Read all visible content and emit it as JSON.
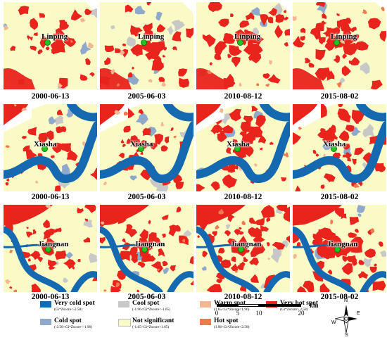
{
  "colors": {
    "very_cold": "#1569b0",
    "cold": "#8fa9cd",
    "cool": "#c8c8c8",
    "not_significant": "#fafac6",
    "warm": "#f3b793",
    "hot": "#ee7a4e",
    "very_hot": "#e8241c",
    "site_marker": "#22c322"
  },
  "rows": [
    {
      "site": "Linping",
      "panels": [
        {
          "date": "2000-06-13"
        },
        {
          "date": "2005-06-03"
        },
        {
          "date": "2010-08-12"
        },
        {
          "date": "2015-08-02"
        }
      ]
    },
    {
      "site": "Xiasha",
      "panels": [
        {
          "date": "2000-06-13"
        },
        {
          "date": "2005-06-03"
        },
        {
          "date": "2010-08-12"
        },
        {
          "date": "2015-08-02"
        }
      ]
    },
    {
      "site": "Jiangnan",
      "panels": [
        {
          "date": "2000-06-13"
        },
        {
          "date": "2005-06-03"
        },
        {
          "date": "2010-08-12"
        },
        {
          "date": "2015-08-02"
        }
      ]
    }
  ],
  "legend": [
    {
      "key": "very_cold",
      "name": "Very cold spot",
      "range": "(Gi*Zscore<-2.58)"
    },
    {
      "key": "cold",
      "name": "Cold spot",
      "range": "(-2.58<Gi*Zscore<-1.96)"
    },
    {
      "key": "cool",
      "name": "Cool spot",
      "range": "(-1.96<Gi*Zscore<-1.65)"
    },
    {
      "key": "not_significant",
      "name": "Not significant",
      "range": "(-1.65<Gi*Zscore<1.65)"
    },
    {
      "key": "warm",
      "name": "Warm spot",
      "range": "(1.65<Gi*Zscore<1.96)"
    },
    {
      "key": "hot",
      "name": "Hot spot",
      "range": "(1.96<Gi*Zscore<2.58)"
    },
    {
      "key": "very_hot",
      "name": "Very hot spot",
      "range": "(Gi*Zscore> 2.58)"
    }
  ],
  "scale_bar": {
    "unit": "km",
    "ticks": [
      "0",
      "5",
      "10",
      "20"
    ],
    "tick_values": [
      0,
      5,
      10,
      20
    ]
  },
  "compass": {
    "n": "N",
    "s": "S",
    "e": "E",
    "w": "W"
  }
}
